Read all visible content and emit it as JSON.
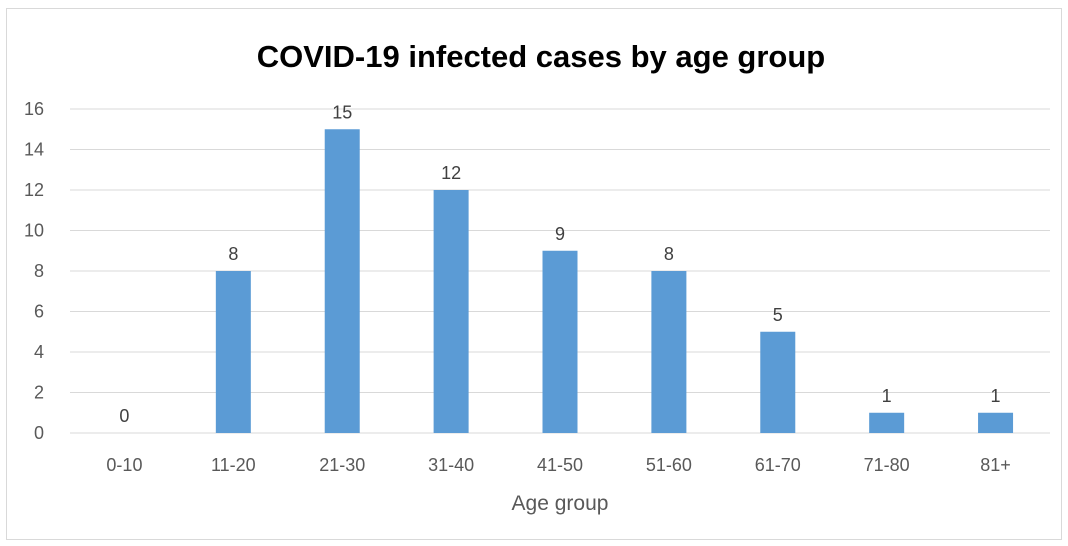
{
  "chart_data": {
    "type": "bar",
    "title": "COVID-19 infected cases by age group",
    "xlabel": "Age group",
    "ylabel": "",
    "categories": [
      "0-10",
      "11-20",
      "21-30",
      "31-40",
      "41-50",
      "51-60",
      "61-70",
      "71-80",
      "81+"
    ],
    "values": [
      0,
      8,
      15,
      12,
      9,
      8,
      5,
      1,
      1
    ],
    "ylim": [
      0,
      16
    ],
    "yticks": [
      0,
      2,
      4,
      6,
      8,
      10,
      12,
      14,
      16
    ],
    "grid": true,
    "legend": "none",
    "bar_color": "#5b9bd5"
  }
}
